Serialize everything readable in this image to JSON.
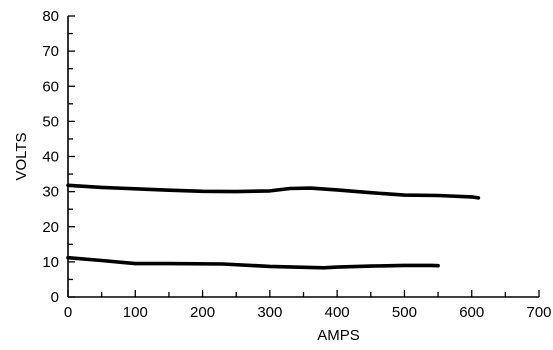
{
  "chart_data": {
    "type": "line",
    "title": "",
    "xlabel": "AMPS",
    "ylabel": "VOLTS",
    "xlim": [
      0,
      700
    ],
    "ylim": [
      0,
      80
    ],
    "x_ticks": [
      "0",
      "100",
      "200",
      "300",
      "400",
      "500",
      "600",
      "700"
    ],
    "y_ticks": [
      "0",
      "10",
      "20",
      "30",
      "40",
      "50",
      "60",
      "70",
      "80"
    ],
    "grid": false,
    "legend": "none",
    "line_color": "#000000",
    "series": [
      {
        "x": [
          0,
          50,
          100,
          150,
          200,
          250,
          300,
          330,
          360,
          400,
          450,
          500,
          550,
          600,
          610
        ],
        "y": [
          31.8,
          31.2,
          30.8,
          30.4,
          30.1,
          30.0,
          30.2,
          30.9,
          31.0,
          30.5,
          29.7,
          29.0,
          28.9,
          28.5,
          28.2
        ]
      },
      {
        "x": [
          0,
          50,
          100,
          150,
          230,
          300,
          380,
          400,
          450,
          500,
          540,
          550
        ],
        "y": [
          11.2,
          10.4,
          9.5,
          9.5,
          9.4,
          8.7,
          8.3,
          8.5,
          8.8,
          9.0,
          9.0,
          8.9
        ]
      }
    ]
  }
}
